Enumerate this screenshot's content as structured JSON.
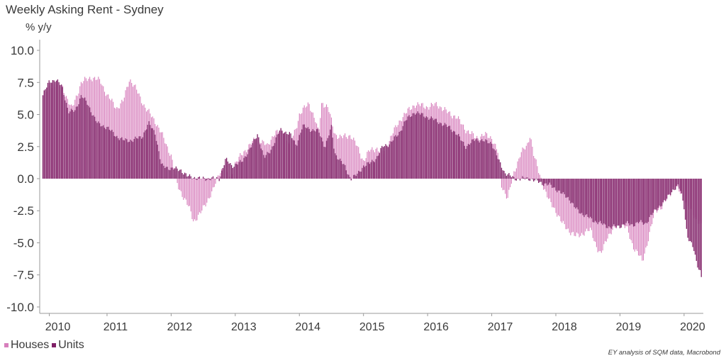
{
  "chart_data": {
    "type": "bar",
    "title": "Weekly Asking Rent - Sydney",
    "ylabel": "% y/y",
    "ylim": [
      -10.5,
      10.5
    ],
    "yticks": [
      10.0,
      7.5,
      5.0,
      2.5,
      0.0,
      -2.5,
      -5.0,
      -7.5,
      -10.0
    ],
    "ytick_labels": [
      "10.0",
      "7.5",
      "5.0",
      "2.5",
      "0.0",
      "-2.5",
      "-5.0",
      "-7.5",
      "-10.0"
    ],
    "xlim": [
      2009.95,
      2020.3
    ],
    "xticks": [
      2010.1,
      2011.0,
      2012.0,
      2013.0,
      2014.0,
      2015.0,
      2016.0,
      2017.0,
      2018.0,
      2019.0,
      2020.0
    ],
    "xtick_labels": [
      "2010",
      "2011",
      "2012",
      "2013",
      "2014",
      "2015",
      "2016",
      "2017",
      "2018",
      "2019",
      "2020"
    ],
    "x_start": 2010.0,
    "x_end": 2020.27,
    "legend_position": "bottom-left",
    "grid": false,
    "series": [
      {
        "name": "Houses",
        "color": "#d77fbc",
        "points": [
          [
            2010.0,
            6.5
          ],
          [
            2010.15,
            7.4
          ],
          [
            2010.3,
            7.2
          ],
          [
            2010.45,
            5.4
          ],
          [
            2010.6,
            7.5
          ],
          [
            2010.75,
            7.9
          ],
          [
            2010.9,
            7.6
          ],
          [
            2011.0,
            6.5
          ],
          [
            2011.15,
            5.5
          ],
          [
            2011.25,
            6.0
          ],
          [
            2011.35,
            7.8
          ],
          [
            2011.45,
            7.0
          ],
          [
            2011.6,
            5.5
          ],
          [
            2011.75,
            4.5
          ],
          [
            2011.85,
            3.5
          ],
          [
            2012.0,
            1.8
          ],
          [
            2012.1,
            -0.5
          ],
          [
            2012.2,
            -1.5
          ],
          [
            2012.3,
            -2.5
          ],
          [
            2012.35,
            -3.3
          ],
          [
            2012.45,
            -2.8
          ],
          [
            2012.55,
            -1.8
          ],
          [
            2012.65,
            -1.0
          ],
          [
            2012.75,
            0.5
          ],
          [
            2012.85,
            1.0
          ],
          [
            2012.92,
            0.0
          ],
          [
            2013.0,
            1.2
          ],
          [
            2013.2,
            2.5
          ],
          [
            2013.35,
            3.2
          ],
          [
            2013.5,
            2.5
          ],
          [
            2013.6,
            3.5
          ],
          [
            2013.75,
            3.8
          ],
          [
            2013.85,
            2.6
          ],
          [
            2013.95,
            4.0
          ],
          [
            2014.0,
            5.0
          ],
          [
            2014.15,
            5.9
          ],
          [
            2014.25,
            4.5
          ],
          [
            2014.3,
            3.5
          ],
          [
            2014.35,
            6.0
          ],
          [
            2014.45,
            5.5
          ],
          [
            2014.55,
            3.5
          ],
          [
            2014.65,
            3.2
          ],
          [
            2014.8,
            3.4
          ],
          [
            2014.9,
            2.5
          ],
          [
            2015.0,
            1.4
          ],
          [
            2015.1,
            2.2
          ],
          [
            2015.2,
            2.4
          ],
          [
            2015.3,
            1.9
          ],
          [
            2015.45,
            3.5
          ],
          [
            2015.6,
            4.8
          ],
          [
            2015.8,
            5.8
          ],
          [
            2016.0,
            5.6
          ],
          [
            2016.15,
            5.8
          ],
          [
            2016.3,
            5.2
          ],
          [
            2016.45,
            4.8
          ],
          [
            2016.6,
            3.8
          ],
          [
            2016.75,
            3.2
          ],
          [
            2016.9,
            3.4
          ],
          [
            2017.0,
            3.2
          ],
          [
            2017.1,
            2.0
          ],
          [
            2017.15,
            -0.5
          ],
          [
            2017.25,
            -1.5
          ],
          [
            2017.35,
            0.5
          ],
          [
            2017.45,
            2.0
          ],
          [
            2017.55,
            2.5
          ],
          [
            2017.6,
            3.5
          ],
          [
            2017.65,
            2.0
          ],
          [
            2017.72,
            0.7
          ],
          [
            2017.8,
            -0.5
          ],
          [
            2017.9,
            -1.8
          ],
          [
            2018.0,
            -2.5
          ],
          [
            2018.1,
            -3.5
          ],
          [
            2018.2,
            -4.0
          ],
          [
            2018.3,
            -4.5
          ],
          [
            2018.45,
            -4.2
          ],
          [
            2018.55,
            -4.0
          ],
          [
            2018.65,
            -5.5
          ],
          [
            2018.7,
            -6.0
          ],
          [
            2018.8,
            -4.5
          ],
          [
            2018.9,
            -4.0
          ],
          [
            2019.0,
            -3.5
          ],
          [
            2019.1,
            -3.8
          ],
          [
            2019.2,
            -5.2
          ],
          [
            2019.3,
            -6.0
          ],
          [
            2019.35,
            -6.5
          ],
          [
            2019.45,
            -4.5
          ],
          [
            2019.55,
            -2.5
          ],
          [
            2019.65,
            -2.2
          ],
          [
            2019.75,
            -1.5
          ],
          [
            2019.85,
            -0.5
          ],
          [
            2019.95,
            -1.2
          ],
          [
            2020.05,
            -2.0
          ],
          [
            2020.15,
            -3.0
          ],
          [
            2020.27,
            -3.5
          ]
        ]
      },
      {
        "name": "Units",
        "color": "#7f1f66",
        "points": [
          [
            2010.0,
            6.5
          ],
          [
            2010.1,
            7.6
          ],
          [
            2010.2,
            7.7
          ],
          [
            2010.3,
            7.2
          ],
          [
            2010.4,
            5.2
          ],
          [
            2010.5,
            5.3
          ],
          [
            2010.6,
            6.5
          ],
          [
            2010.7,
            5.8
          ],
          [
            2010.85,
            4.3
          ],
          [
            2011.0,
            4.0
          ],
          [
            2011.15,
            3.3
          ],
          [
            2011.25,
            3.0
          ],
          [
            2011.4,
            3.0
          ],
          [
            2011.55,
            3.3
          ],
          [
            2011.65,
            4.3
          ],
          [
            2011.75,
            3.6
          ],
          [
            2011.85,
            1.0
          ],
          [
            2012.0,
            0.8
          ],
          [
            2012.15,
            0.7
          ],
          [
            2012.25,
            0.2
          ],
          [
            2012.45,
            0.0
          ],
          [
            2012.75,
            0.0
          ],
          [
            2012.85,
            1.5
          ],
          [
            2012.95,
            1.0
          ],
          [
            2013.1,
            1.3
          ],
          [
            2013.25,
            2.5
          ],
          [
            2013.35,
            3.5
          ],
          [
            2013.45,
            1.6
          ],
          [
            2013.55,
            2.2
          ],
          [
            2013.7,
            3.8
          ],
          [
            2013.85,
            3.5
          ],
          [
            2013.95,
            2.6
          ],
          [
            2014.05,
            4.1
          ],
          [
            2014.2,
            3.8
          ],
          [
            2014.3,
            3.7
          ],
          [
            2014.4,
            2.5
          ],
          [
            2014.5,
            4.0
          ],
          [
            2014.55,
            2.0
          ],
          [
            2014.7,
            1.0
          ],
          [
            2014.8,
            0.0
          ],
          [
            2014.9,
            0.3
          ],
          [
            2015.0,
            1.0
          ],
          [
            2015.1,
            1.2
          ],
          [
            2015.2,
            1.6
          ],
          [
            2015.3,
            2.5
          ],
          [
            2015.4,
            2.7
          ],
          [
            2015.55,
            3.5
          ],
          [
            2015.65,
            4.5
          ],
          [
            2015.8,
            5.2
          ],
          [
            2016.0,
            4.8
          ],
          [
            2016.15,
            4.5
          ],
          [
            2016.25,
            4.2
          ],
          [
            2016.35,
            4.0
          ],
          [
            2016.45,
            3.5
          ],
          [
            2016.6,
            2.5
          ],
          [
            2016.75,
            3.1
          ],
          [
            2016.9,
            2.9
          ],
          [
            2017.0,
            2.8
          ],
          [
            2017.1,
            1.5
          ],
          [
            2017.2,
            0.5
          ],
          [
            2017.35,
            0.0
          ],
          [
            2017.6,
            0.0
          ],
          [
            2017.75,
            -0.3
          ],
          [
            2017.9,
            -0.5
          ],
          [
            2018.0,
            -0.8
          ],
          [
            2018.1,
            -1.2
          ],
          [
            2018.2,
            -1.5
          ],
          [
            2018.3,
            -2.3
          ],
          [
            2018.4,
            -2.7
          ],
          [
            2018.5,
            -3.0
          ],
          [
            2018.6,
            -3.3
          ],
          [
            2018.75,
            -3.6
          ],
          [
            2018.85,
            -3.8
          ],
          [
            2019.0,
            -3.7
          ],
          [
            2019.1,
            -3.5
          ],
          [
            2019.2,
            -3.6
          ],
          [
            2019.3,
            -3.4
          ],
          [
            2019.4,
            -3.5
          ],
          [
            2019.5,
            -2.8
          ],
          [
            2019.6,
            -2.2
          ],
          [
            2019.7,
            -1.8
          ],
          [
            2019.8,
            -1.0
          ],
          [
            2019.9,
            -0.6
          ],
          [
            2019.95,
            -1.0
          ],
          [
            2020.0,
            -2.2
          ],
          [
            2020.05,
            -4.5
          ],
          [
            2020.1,
            -5.0
          ],
          [
            2020.15,
            -5.5
          ],
          [
            2020.2,
            -6.6
          ],
          [
            2020.25,
            -7.2
          ],
          [
            2020.27,
            -7.7
          ]
        ]
      }
    ]
  },
  "legend": {
    "houses_label": "Houses",
    "units_label": "Units"
  },
  "footer": {
    "source": "EY analysis of SQM data, Macrobond"
  }
}
